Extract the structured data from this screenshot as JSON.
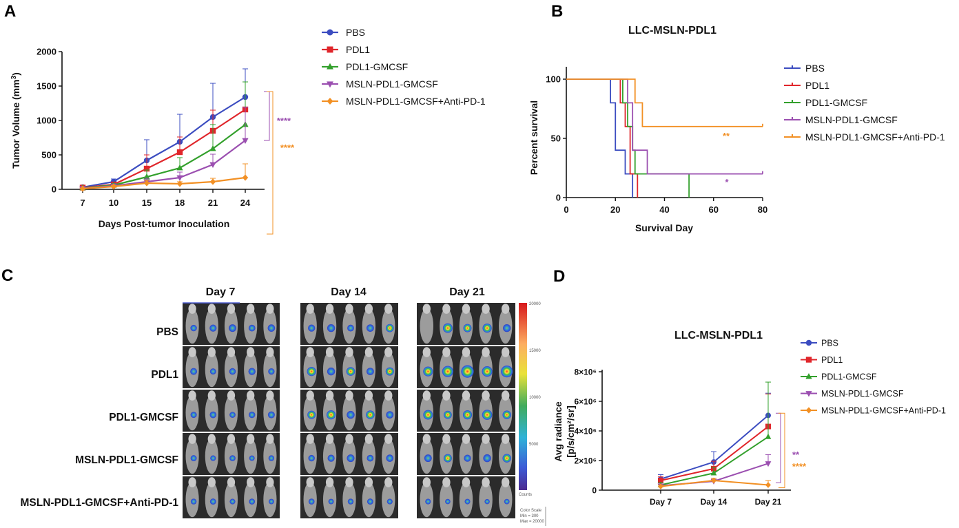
{
  "panels": {
    "a": "A",
    "b": "B",
    "c": "C",
    "d": "D"
  },
  "colors": {
    "PBS": "#3b4cc0",
    "PDL1": "#e0262b",
    "PDL1-GMCSF": "#33a02c",
    "MSLN-PDL1-GMCSF": "#9b4fb0",
    "MSLN-PDL1-GMCSF+Anti-PD-1": "#f29024"
  },
  "chart_data": [
    {
      "id": "A",
      "type": "line",
      "title": "",
      "xlabel": "Days Post-tumor Inoculation",
      "ylabel": "Tumor Volume (mm",
      "ylabel_sup": "3",
      "ylabel_end": ")",
      "ylim": [
        0,
        2000
      ],
      "yticks": [
        0,
        500,
        1000,
        1500,
        2000
      ],
      "x": [
        "7",
        "10",
        "15",
        "18",
        "21",
        "24"
      ],
      "series": [
        {
          "name": "PBS",
          "values": [
            30,
            110,
            420,
            690,
            1050,
            1340
          ],
          "errors": [
            20,
            40,
            300,
            400,
            490,
            410
          ],
          "marker": "circle"
        },
        {
          "name": "PDL1",
          "values": [
            25,
            70,
            300,
            540,
            850,
            1160
          ],
          "errors": [
            15,
            30,
            200,
            220,
            300,
            400
          ],
          "marker": "square"
        },
        {
          "name": "PDL1-GMCSF",
          "values": [
            20,
            60,
            180,
            310,
            590,
            940
          ],
          "errors": [
            12,
            25,
            100,
            150,
            350,
            620
          ],
          "marker": "triangle"
        },
        {
          "name": "MSLN-PDL1-GMCSF",
          "values": [
            15,
            50,
            110,
            170,
            360,
            710
          ],
          "errors": [
            10,
            20,
            50,
            80,
            150,
            480
          ],
          "marker": "triangle-down"
        },
        {
          "name": "MSLN-PDL1-GMCSF+Anti-PD-1",
          "values": [
            10,
            40,
            90,
            80,
            110,
            170
          ],
          "errors": [
            8,
            15,
            40,
            30,
            50,
            200
          ],
          "marker": "diamond"
        }
      ],
      "annotations": [
        "****",
        "****"
      ]
    },
    {
      "id": "B",
      "type": "line",
      "title": "LLC-MSLN-PDL1",
      "xlabel": "Survival Day",
      "ylabel": "Percent survival",
      "xlim": [
        0,
        80
      ],
      "ylim": [
        0,
        100
      ],
      "xticks": [
        0,
        20,
        40,
        60,
        80
      ],
      "yticks": [
        0,
        50,
        100
      ],
      "series": [
        {
          "name": "PBS",
          "steps": [
            [
              0,
              100
            ],
            [
              18,
              100
            ],
            [
              18,
              80
            ],
            [
              20,
              80
            ],
            [
              20,
              40
            ],
            [
              24,
              40
            ],
            [
              24,
              20
            ],
            [
              27,
              20
            ],
            [
              27,
              0
            ]
          ]
        },
        {
          "name": "PDL1",
          "steps": [
            [
              0,
              100
            ],
            [
              22,
              100
            ],
            [
              22,
              80
            ],
            [
              24,
              80
            ],
            [
              24,
              60
            ],
            [
              26,
              60
            ],
            [
              26,
              20
            ],
            [
              29,
              20
            ],
            [
              29,
              0
            ]
          ]
        },
        {
          "name": "PDL1-GMCSF",
          "steps": [
            [
              0,
              100
            ],
            [
              23,
              100
            ],
            [
              23,
              80
            ],
            [
              25,
              80
            ],
            [
              25,
              60
            ],
            [
              27,
              60
            ],
            [
              27,
              40
            ],
            [
              28,
              40
            ],
            [
              28,
              20
            ],
            [
              50,
              20
            ],
            [
              50,
              0
            ]
          ]
        },
        {
          "name": "MSLN-PDL1-GMCSF",
          "steps": [
            [
              0,
              100
            ],
            [
              25,
              100
            ],
            [
              25,
              80
            ],
            [
              27,
              80
            ],
            [
              27,
              40
            ],
            [
              33,
              40
            ],
            [
              33,
              20
            ],
            [
              80,
              20
            ]
          ]
        },
        {
          "name": "MSLN-PDL1-GMCSF+Anti-PD-1",
          "steps": [
            [
              0,
              100
            ],
            [
              28,
              100
            ],
            [
              28,
              80
            ],
            [
              31,
              80
            ],
            [
              31,
              60
            ],
            [
              80,
              60
            ]
          ]
        }
      ],
      "annotations": [
        "**",
        "*"
      ]
    },
    {
      "id": "D",
      "type": "line",
      "title": "LLC-MSLN-PDL1",
      "xlabel": "",
      "ylabel_line1": "Avg radiance",
      "ylabel_line2": "[p/s/cm²/sr]",
      "ylim": [
        0,
        8000000
      ],
      "yticks": [
        0,
        2000000,
        4000000,
        6000000,
        8000000
      ],
      "ytick_labels": [
        "0",
        "2×10⁶",
        "4×10⁶",
        "6×10⁶",
        "8×10⁶"
      ],
      "x": [
        "Day 7",
        "Day 14",
        "Day 21"
      ],
      "series": [
        {
          "name": "PBS",
          "values": [
            750000,
            1900000,
            5050000
          ],
          "errors": [
            300000,
            700000,
            1500000
          ],
          "marker": "circle"
        },
        {
          "name": "PDL1",
          "values": [
            650000,
            1450000,
            4300000
          ],
          "errors": [
            250000,
            500000,
            2200000
          ],
          "marker": "square"
        },
        {
          "name": "PDL1-GMCSF",
          "values": [
            350000,
            1150000,
            3600000
          ],
          "errors": [
            150000,
            400000,
            3700000
          ],
          "marker": "triangle"
        },
        {
          "name": "MSLN-PDL1-GMCSF",
          "values": [
            300000,
            600000,
            1800000
          ],
          "errors": [
            100000,
            200000,
            600000
          ],
          "marker": "triangle-down"
        },
        {
          "name": "MSLN-PDL1-GMCSF+Anti-PD-1",
          "values": [
            250000,
            650000,
            350000
          ],
          "errors": [
            100000,
            150000,
            300000
          ],
          "marker": "diamond"
        }
      ],
      "annotations": [
        "**",
        "****"
      ]
    }
  ],
  "imaging": {
    "days": [
      "Day 7",
      "Day 14",
      "Day 21"
    ],
    "groups": [
      "PBS",
      "PDL1",
      "PDL1-GMCSF",
      "MSLN-PDL1-GMCSF",
      "MSLN-PDL1-GMCSF+Anti-PD-1"
    ],
    "colorbar": {
      "ticks": [
        "20000",
        "15000",
        "10000",
        "5000"
      ],
      "unit": "Counts",
      "scale_note": "Color Scale",
      "min": "Min = 300",
      "max": "Max = 20000"
    }
  }
}
